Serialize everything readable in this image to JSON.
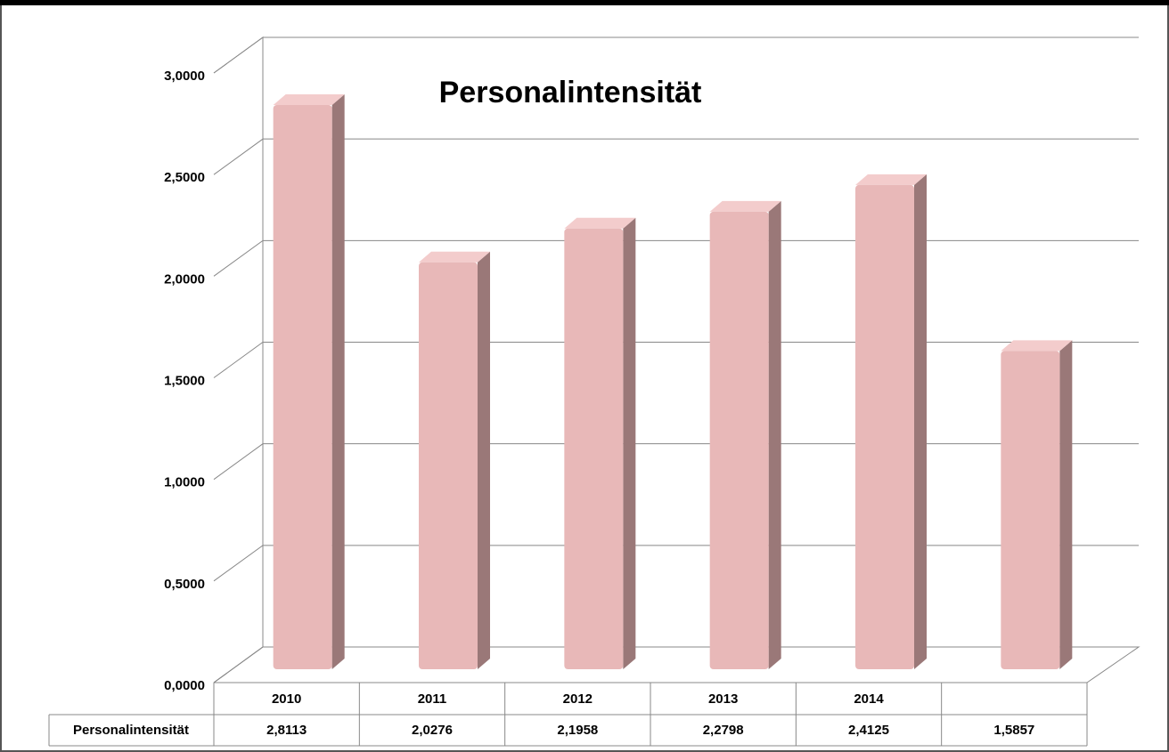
{
  "chart_data": {
    "type": "bar3d",
    "title": "Personalintensität",
    "categories": [
      "2010",
      "2011",
      "2012",
      "2013",
      "2014",
      null
    ],
    "series": [
      {
        "name": "Personalintensität",
        "color": "#e8b8b8",
        "values": [
          2.8113,
          2.0276,
          2.1958,
          2.2798,
          2.4125,
          1.5857
        ],
        "value_labels": [
          "2,8113",
          "2,0276",
          "2,1958",
          "2,2798",
          "2,4125",
          "1,5857"
        ]
      }
    ],
    "ylim": [
      0,
      3
    ],
    "yticks": [
      {
        "value": 0,
        "label": "0,0000"
      },
      {
        "value": 0.5,
        "label": "0,5000"
      },
      {
        "value": 1,
        "label": "1,0000"
      },
      {
        "value": 1.5,
        "label": "1,5000"
      },
      {
        "value": 2,
        "label": "2,0000"
      },
      {
        "value": 2.5,
        "label": "2,5000"
      },
      {
        "value": 3,
        "label": "3,0000"
      }
    ],
    "grid": true,
    "data_table": true
  }
}
